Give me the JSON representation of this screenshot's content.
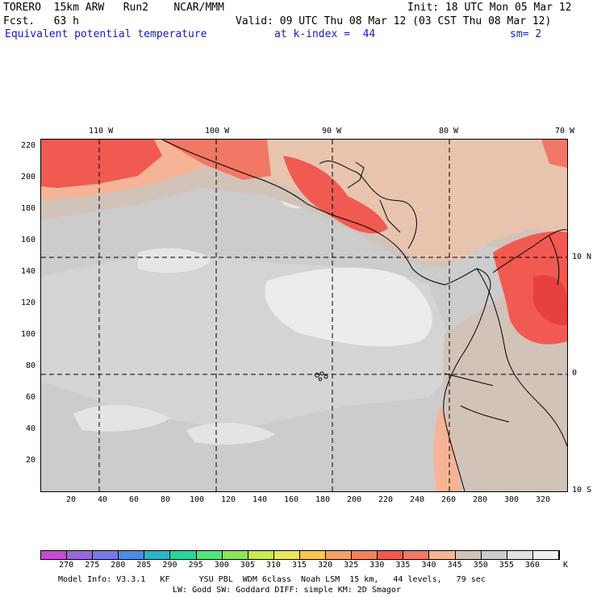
{
  "header": {
    "model": "TORERO  15km ARW   Run2    NCAR/MMM",
    "init": "Init: 18 UTC Mon 05 Mar 12",
    "fcst": "Fcst.   63 h",
    "valid": "Valid: 09 UTC Thu 08 Mar 12 (03 CST Thu 08 Mar 12)",
    "field": "Equivalent potential temperature",
    "level": "at k-index =  44",
    "smooth": "sm= 2"
  },
  "map": {
    "top_lon_labels": [
      "110 W",
      "100 W",
      "90 W",
      "80 W",
      "70 W"
    ],
    "right_lat_labels": [
      "10 N",
      "0",
      "10 S"
    ],
    "y_ticks": [
      "220",
      "200",
      "180",
      "160",
      "140",
      "120",
      "100",
      "80",
      "60",
      "40",
      "20"
    ],
    "x_ticks": [
      "20",
      "40",
      "60",
      "80",
      "100",
      "120",
      "140",
      "160",
      "180",
      "200",
      "220",
      "240",
      "260",
      "280",
      "300",
      "320"
    ]
  },
  "colorbar": {
    "labels": [
      "270",
      "275",
      "280",
      "285",
      "290",
      "295",
      "300",
      "305",
      "310",
      "315",
      "320",
      "325",
      "330",
      "335",
      "340",
      "345",
      "350",
      "355",
      "360"
    ],
    "unit": "K",
    "colors": [
      "#c84bd2",
      "#9a67dc",
      "#7878e6",
      "#4f8be6",
      "#2ab4c8",
      "#28d79b",
      "#50e678",
      "#8ce65a",
      "#c8eb50",
      "#ebe65a",
      "#fac850",
      "#f5a064",
      "#f0825a",
      "#f05a50",
      "#f07864",
      "#f5b496",
      "#d2c3b9",
      "#cccccc",
      "#e1e1e1",
      "#f0f0f0"
    ]
  },
  "footer": {
    "line1": "Model Info: V3.3.1   KF      YSU PBL  WDM 6class  Noah LSM  15 km,   44 levels,   79 sec",
    "line2": "LW: Godd SW: Goddard DIFF: simple KM: 2D Smagor"
  }
}
